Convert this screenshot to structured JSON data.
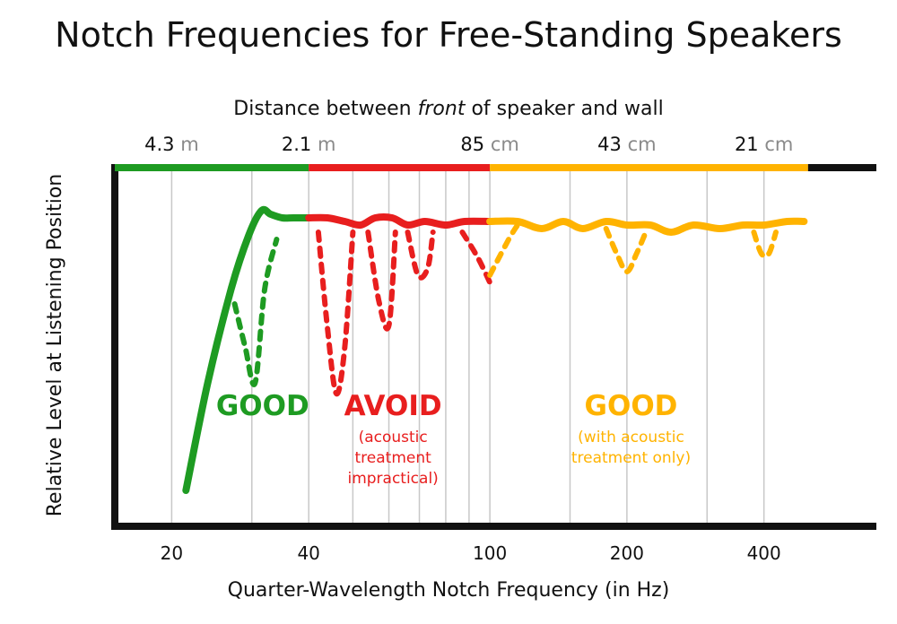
{
  "chart_data": {
    "type": "line",
    "title": "Notch Frequencies for Free-Standing Speakers",
    "xlabel": "Quarter-Wavelength Notch Frequency (in Hz)",
    "ylabel": "Relative Level at Listening Position",
    "x_scale": "log",
    "xlim": [
      15,
      700
    ],
    "x_ticks": [
      "20",
      "40",
      "100",
      "200",
      "400"
    ],
    "x_tick_values": [
      20,
      40,
      100,
      200,
      400
    ],
    "grid_x_values": [
      20,
      30,
      40,
      50,
      60,
      70,
      80,
      90,
      100,
      150,
      200,
      300,
      400
    ],
    "ylim": [
      0,
      100
    ],
    "top_axis": {
      "label_prefix": "Distance between ",
      "label_emphasis": "front",
      "label_suffix": " of speaker and wall",
      "ticks": [
        {
          "num": "4.3",
          "unit": "m",
          "freq": 20
        },
        {
          "num": "2.1",
          "unit": "m",
          "freq": 40
        },
        {
          "num": "85",
          "unit": "cm",
          "freq": 100
        },
        {
          "num": "43",
          "unit": "cm",
          "freq": 200
        },
        {
          "num": "21",
          "unit": "cm",
          "freq": 400
        }
      ]
    },
    "zones": [
      {
        "name": "good-low",
        "from": 15,
        "to": 40,
        "color": "#1e9b22",
        "label": "GOOD",
        "note": []
      },
      {
        "name": "avoid",
        "from": 40,
        "to": 100,
        "color": "#e81e1e",
        "label": "AVOID",
        "note": [
          "(acoustic",
          "treatment",
          "impractical)"
        ]
      },
      {
        "name": "good-high",
        "from": 100,
        "to": 500,
        "color": "#ffb300",
        "label": "GOOD",
        "note": [
          "(with acoustic",
          "treatment only)"
        ]
      }
    ],
    "top_bar_tail_color": "#111111",
    "series": [
      {
        "style": "solid",
        "color": "#1e9b22",
        "points": [
          [
            21.5,
            10
          ],
          [
            24,
            40
          ],
          [
            27,
            66
          ],
          [
            29.5,
            81
          ],
          [
            31.5,
            88
          ],
          [
            33,
            87
          ],
          [
            35,
            86
          ],
          [
            37,
            86
          ],
          [
            40,
            86
          ]
        ]
      },
      {
        "style": "solid",
        "color": "#e81e1e",
        "points": [
          [
            40,
            86
          ],
          [
            44,
            86
          ],
          [
            48,
            85
          ],
          [
            52,
            84
          ],
          [
            56,
            86
          ],
          [
            61,
            86
          ],
          [
            66,
            84
          ],
          [
            72,
            85
          ],
          [
            80,
            84
          ],
          [
            88,
            85
          ],
          [
            100,
            85
          ]
        ]
      },
      {
        "style": "solid",
        "color": "#ffb300",
        "points": [
          [
            100,
            85
          ],
          [
            115,
            85
          ],
          [
            130,
            83
          ],
          [
            145,
            85
          ],
          [
            160,
            83
          ],
          [
            180,
            85
          ],
          [
            200,
            84
          ],
          [
            225,
            84
          ],
          [
            250,
            82
          ],
          [
            280,
            84
          ],
          [
            320,
            83
          ],
          [
            360,
            84
          ],
          [
            400,
            84
          ],
          [
            450,
            85
          ],
          [
            490,
            85
          ]
        ]
      },
      {
        "style": "dashed",
        "color": "#1e9b22",
        "points": [
          [
            27.5,
            62
          ],
          [
            29,
            50
          ],
          [
            30.5,
            40
          ],
          [
            32,
            66
          ],
          [
            34,
            80
          ]
        ]
      },
      {
        "style": "dashed",
        "color": "#e81e1e",
        "points": [
          [
            42,
            82
          ],
          [
            44,
            55
          ],
          [
            46,
            37
          ],
          [
            48,
            50
          ],
          [
            50,
            82
          ]
        ]
      },
      {
        "style": "dashed",
        "color": "#e81e1e",
        "points": [
          [
            54,
            82
          ],
          [
            57,
            63
          ],
          [
            60,
            56
          ],
          [
            62,
            82
          ]
        ]
      },
      {
        "style": "dashed",
        "color": "#e81e1e",
        "points": [
          [
            66,
            82
          ],
          [
            69.5,
            70
          ],
          [
            73,
            72
          ],
          [
            75,
            82
          ]
        ]
      },
      {
        "style": "dashed",
        "color": "#e81e1e",
        "points": [
          [
            87,
            82
          ],
          [
            94,
            75
          ],
          [
            100,
            68
          ]
        ]
      },
      {
        "style": "dashed",
        "color": "#ffb300",
        "points": [
          [
            100,
            70
          ],
          [
            110,
            80
          ],
          [
            115,
            84
          ]
        ]
      },
      {
        "style": "dashed",
        "color": "#ffb300",
        "points": [
          [
            180,
            83
          ],
          [
            190,
            76
          ],
          [
            200,
            71
          ],
          [
            210,
            76
          ],
          [
            220,
            82
          ]
        ]
      },
      {
        "style": "dashed",
        "color": "#ffb300",
        "points": [
          [
            380,
            82
          ],
          [
            395,
            76
          ],
          [
            410,
            76
          ],
          [
            425,
            82
          ]
        ]
      }
    ]
  }
}
